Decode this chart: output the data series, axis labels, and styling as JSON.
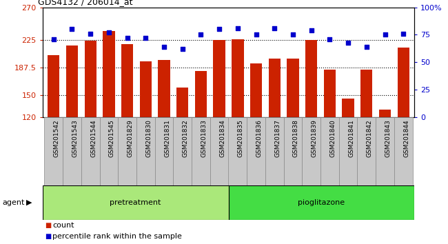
{
  "title": "GDS4132 / 206014_at",
  "samples": [
    "GSM201542",
    "GSM201543",
    "GSM201544",
    "GSM201545",
    "GSM201829",
    "GSM201830",
    "GSM201831",
    "GSM201832",
    "GSM201833",
    "GSM201834",
    "GSM201835",
    "GSM201836",
    "GSM201837",
    "GSM201838",
    "GSM201839",
    "GSM201840",
    "GSM201841",
    "GSM201842",
    "GSM201843",
    "GSM201844"
  ],
  "counts": [
    205,
    218,
    224,
    238,
    220,
    196,
    198,
    160,
    183,
    225,
    226,
    193,
    200,
    200,
    225,
    185,
    145,
    185,
    130,
    215
  ],
  "percentiles": [
    71,
    80,
    76,
    77,
    72,
    72,
    64,
    62,
    75,
    80,
    81,
    75,
    81,
    75,
    79,
    71,
    68,
    64,
    75,
    76
  ],
  "pretreatment_count": 10,
  "pioglitazone_count": 10,
  "ylim_left": [
    120,
    270
  ],
  "ylim_right": [
    0,
    100
  ],
  "yticks_left": [
    120,
    150,
    187.5,
    225,
    270
  ],
  "ytick_labels_left": [
    "120",
    "150",
    "187.5",
    "225",
    "270"
  ],
  "yticks_right": [
    0,
    25,
    50,
    75,
    100
  ],
  "ytick_labels_right": [
    "0",
    "25",
    "50",
    "75",
    "100%"
  ],
  "bar_color": "#cc2200",
  "dot_color": "#0000cc",
  "pretreatment_color": "#aae87a",
  "pioglitazone_color": "#44dd44",
  "bg_color": "#c8c8c8",
  "grid_color": "#000000",
  "agent_label": "agent",
  "pretreatment_label": "pretreatment",
  "pioglitazone_label": "pioglitazone",
  "legend_count_label": "count",
  "legend_pct_label": "percentile rank within the sample",
  "figsize": [
    6.5,
    3.54
  ],
  "dpi": 100
}
